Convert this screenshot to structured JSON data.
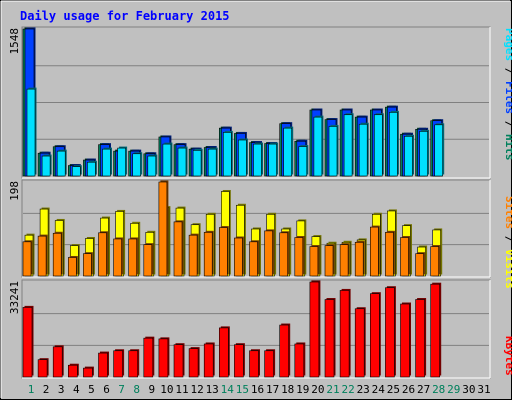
{
  "chart_data": [
    {
      "type": "bar",
      "title": "Daily usage for February 2015",
      "categories": [
        "1",
        "2",
        "3",
        "4",
        "5",
        "6",
        "7",
        "8",
        "9",
        "10",
        "11",
        "12",
        "13",
        "14",
        "15",
        "16",
        "17",
        "18",
        "19",
        "20",
        "21",
        "22",
        "23",
        "24",
        "25",
        "26",
        "27",
        "28",
        "29",
        "30",
        "31"
      ],
      "weekend_days": [
        "1",
        "7",
        "8",
        "14",
        "15",
        "21",
        "22",
        "28",
        "29"
      ],
      "ylabel_max": "1548",
      "ylim": [
        0,
        1548
      ],
      "series": [
        {
          "name": "Hits",
          "color": "#00805c",
          "values": [
            1548,
            240,
            308,
            110,
            168,
            330,
            262,
            262,
            234,
            411,
            330,
            283,
            300,
            504,
            448,
            352,
            342,
            551,
            366,
            695,
            594,
            695,
            620,
            695,
            725,
            440,
            492,
            582,
            0,
            0,
            0
          ]
        },
        {
          "name": "Files",
          "color": "#0040ff",
          "values": [
            1548,
            240,
            308,
            110,
            168,
            330,
            262,
            262,
            234,
            411,
            330,
            283,
            300,
            504,
            448,
            352,
            342,
            551,
            366,
            695,
            594,
            695,
            620,
            695,
            725,
            440,
            492,
            582,
            0,
            0,
            0
          ]
        },
        {
          "name": "Pages",
          "color": "#00e0ff",
          "values": [
            915,
            210,
            262,
            98,
            145,
            283,
            294,
            234,
            210,
            336,
            294,
            270,
            283,
            459,
            379,
            336,
            336,
            504,
            310,
            620,
            522,
            645,
            545,
            645,
            670,
            418,
            470,
            539,
            0,
            0,
            0
          ]
        }
      ]
    },
    {
      "type": "bar",
      "categories": [
        "1",
        "2",
        "3",
        "4",
        "5",
        "6",
        "7",
        "8",
        "9",
        "10",
        "11",
        "12",
        "13",
        "14",
        "15",
        "16",
        "17",
        "18",
        "19",
        "20",
        "21",
        "22",
        "23",
        "24",
        "25",
        "26",
        "27",
        "28",
        "29",
        "30",
        "31"
      ],
      "ylabel_max": "198",
      "ylim": [
        0,
        198
      ],
      "series": [
        {
          "name": "Visits",
          "color": "#ffff00",
          "values": [
            86,
            141,
            117,
            64,
            79,
            122,
            136,
            111,
            92,
            144,
            143,
            108,
            130,
            178,
            149,
            99,
            130,
            99,
            116,
            83,
            69,
            71,
            76,
            130,
            137,
            106,
            61,
            97,
            0,
            0,
            0
          ]
        },
        {
          "name": "Sites",
          "color": "#ff8000",
          "values": [
            72,
            84,
            90,
            39,
            47,
            91,
            78,
            78,
            66,
            198,
            114,
            86,
            92,
            102,
            80,
            72,
            95,
            91,
            81,
            62,
            64,
            66,
            71,
            103,
            92,
            81,
            47,
            62,
            0,
            0,
            0
          ]
        }
      ]
    },
    {
      "type": "bar",
      "categories": [
        "1",
        "2",
        "3",
        "4",
        "5",
        "6",
        "7",
        "8",
        "9",
        "10",
        "11",
        "12",
        "13",
        "14",
        "15",
        "16",
        "17",
        "18",
        "19",
        "20",
        "21",
        "22",
        "23",
        "24",
        "25",
        "26",
        "27",
        "28",
        "29",
        "30",
        "31"
      ],
      "ylabel_max": "33241",
      "ylim": [
        0,
        33241
      ],
      "series": [
        {
          "name": "KBytes",
          "color": "#ff0000",
          "values": [
            24360,
            6060,
            10560,
            4120,
            3110,
            8370,
            9180,
            9180,
            13590,
            13340,
            11300,
            9930,
            11560,
            17180,
            11300,
            9180,
            9180,
            18180,
            11560,
            33241,
            27110,
            30290,
            23880,
            29150,
            31240,
            25540,
            27110,
            32480,
            0,
            0,
            0
          ]
        }
      ]
    }
  ],
  "legend": {
    "top": [
      {
        "text": "Pages",
        "color": "#00e0ff"
      },
      {
        "text": " / ",
        "color": "#000000"
      },
      {
        "text": "Files",
        "color": "#0040ff"
      },
      {
        "text": " / ",
        "color": "#000000"
      },
      {
        "text": "Hits",
        "color": "#00805c"
      }
    ],
    "middle": [
      {
        "text": "Sites",
        "color": "#ff8000"
      },
      {
        "text": " / ",
        "color": "#000000"
      },
      {
        "text": "Visits",
        "color": "#ffff00"
      }
    ],
    "bottom": [
      {
        "text": "KBytes",
        "color": "#ff0000"
      }
    ]
  },
  "colors": {
    "background": "#c0c0c0",
    "gridline": "#808080",
    "title": "#0000ff",
    "weekday_label": "#000000",
    "weekend_label": "#00805c"
  }
}
